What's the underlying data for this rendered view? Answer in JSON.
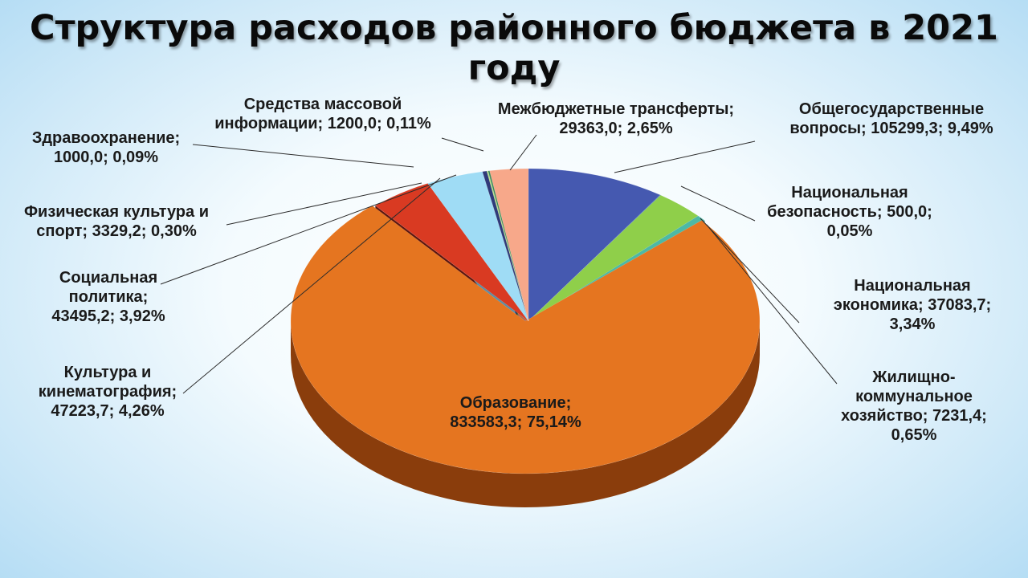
{
  "title": "Структура расходов районного бюджета в 2021 году",
  "chart_data": {
    "type": "pie",
    "title": "Структура расходов районного бюджета в 2021 году",
    "slices": [
      {
        "name": "Общегосударственные вопросы",
        "value": 105299.3,
        "percent": 9.49,
        "label": [
          "Общегосударственные",
          "вопросы;  105299,3; 9,49%"
        ],
        "color": "#4559b0",
        "side_color": "#263577"
      },
      {
        "name": "Национальная безопасность",
        "value": 500.0,
        "percent": 0.05,
        "label": [
          "Национальная",
          "безопасность;  500,0;",
          "0,05%"
        ],
        "color": "#4a8fa8",
        "side_color": "#2e6275"
      },
      {
        "name": "Национальная экономика",
        "value": 37083.7,
        "percent": 3.34,
        "label": [
          "Национальная",
          "экономика;   37083,7;",
          "3,34%"
        ],
        "color": "#8fcf4a",
        "side_color": "#3c7b55"
      },
      {
        "name": "Жилищно-коммунальное хозяйство",
        "value": 7231.4,
        "percent": 0.65,
        "label": [
          "Жилищно-",
          "коммунальное",
          "хозяйство;  7231,4;",
          "0,65%"
        ],
        "color": "#4cb9a5",
        "side_color": "#2a7a6c"
      },
      {
        "name": "Образование",
        "value": 833583.3,
        "percent": 75.14,
        "label": [
          "Образование;",
          "833583,3; 75,14%"
        ],
        "color": "#e57520",
        "side_color": "#8a3d0c"
      },
      {
        "name": "Культура и кинематография",
        "value": 47223.7,
        "percent": 4.26,
        "label": [
          "Культура и",
          "кинематография;",
          "47223,7; 4,26%"
        ],
        "color": "#d93a22",
        "side_color": "#5c160e"
      },
      {
        "name": "Социальная политика",
        "value": 43495.2,
        "percent": 3.92,
        "label": [
          "Социальная",
          "политика;",
          "43495,2; 3,92%"
        ],
        "color": "#9fdcf5",
        "side_color": "#5e8da3"
      },
      {
        "name": "Физическая культура и спорт",
        "value": 3329.2,
        "percent": 0.3,
        "label": [
          "Физическая культура и",
          "спорт;  3329,2; 0,30%"
        ],
        "color": "#2f3a7a",
        "side_color": "#1b2250"
      },
      {
        "name": "Здравоохранение",
        "value": 1000.0,
        "percent": 0.09,
        "label": [
          "Здравоохранение;",
          "1000,0; 0,09%"
        ],
        "color": "#b7e38a",
        "side_color": "#6e9a48"
      },
      {
        "name": "Средства массовой информации",
        "value": 1200.0,
        "percent": 0.11,
        "label": [
          "Средства массовой",
          "информации;  1200,0; 0,11%"
        ],
        "color": "#3c8a5a",
        "side_color": "#245436"
      },
      {
        "name": "Межбюджетные трансферты",
        "value": 29363.0,
        "percent": 2.65,
        "label": [
          "Межбюджетные трансферты;",
          "29363,0; 2,65%"
        ],
        "color": "#f7a88a",
        "side_color": "#b06a52"
      }
    ]
  }
}
